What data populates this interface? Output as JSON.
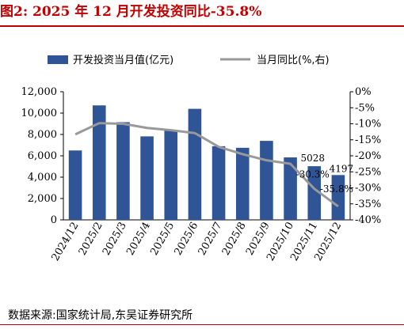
{
  "header": {
    "title": "图2:  2025 年 12 月开发投资同比-35.8%"
  },
  "source": "数据来源:国家统计局,东吴证券研究所",
  "chart_data": {
    "type": "bar",
    "categories": [
      "2024/12",
      "2025/2",
      "2025/3",
      "2025/4",
      "2025/5",
      "2025/6",
      "2025/7",
      "2025/8",
      "2025/9",
      "2025/10",
      "2025/11",
      "2025/12"
    ],
    "series": [
      {
        "name": "开发投资当月值(亿元)",
        "type": "bar",
        "axis": "left",
        "color": "#2f5597",
        "values": [
          6500,
          10720,
          9150,
          7820,
          8400,
          10400,
          6900,
          6750,
          7400,
          5850,
          5028,
          4197
        ]
      },
      {
        "name": "当月同比(%,右)",
        "type": "line",
        "axis": "right",
        "color": "#999999",
        "values": [
          -13.3,
          -9.8,
          -10.0,
          -11.3,
          -12.0,
          -12.9,
          -17.2,
          -19.5,
          -21.4,
          -22.5,
          -30.3,
          -35.8
        ]
      }
    ],
    "left_axis": {
      "min": 0,
      "max": 12000,
      "ticks": [
        "0",
        "2,000",
        "4,000",
        "6,000",
        "8,000",
        "10,000",
        "12,000"
      ]
    },
    "right_axis": {
      "min": -40,
      "max": 0,
      "ticks": [
        "0%",
        "-5%",
        "-10%",
        "-15%",
        "-20%",
        "-25%",
        "-30%",
        "-35%",
        "-40%"
      ]
    },
    "data_labels": [
      {
        "series": 0,
        "index": 10,
        "text": "5028"
      },
      {
        "series": 0,
        "index": 11,
        "text": "4197"
      },
      {
        "series": 1,
        "index": 10,
        "text": "-30.3%"
      },
      {
        "series": 1,
        "index": 11,
        "text": "-35.8%"
      }
    ],
    "legend_position": "top",
    "grid": false
  }
}
